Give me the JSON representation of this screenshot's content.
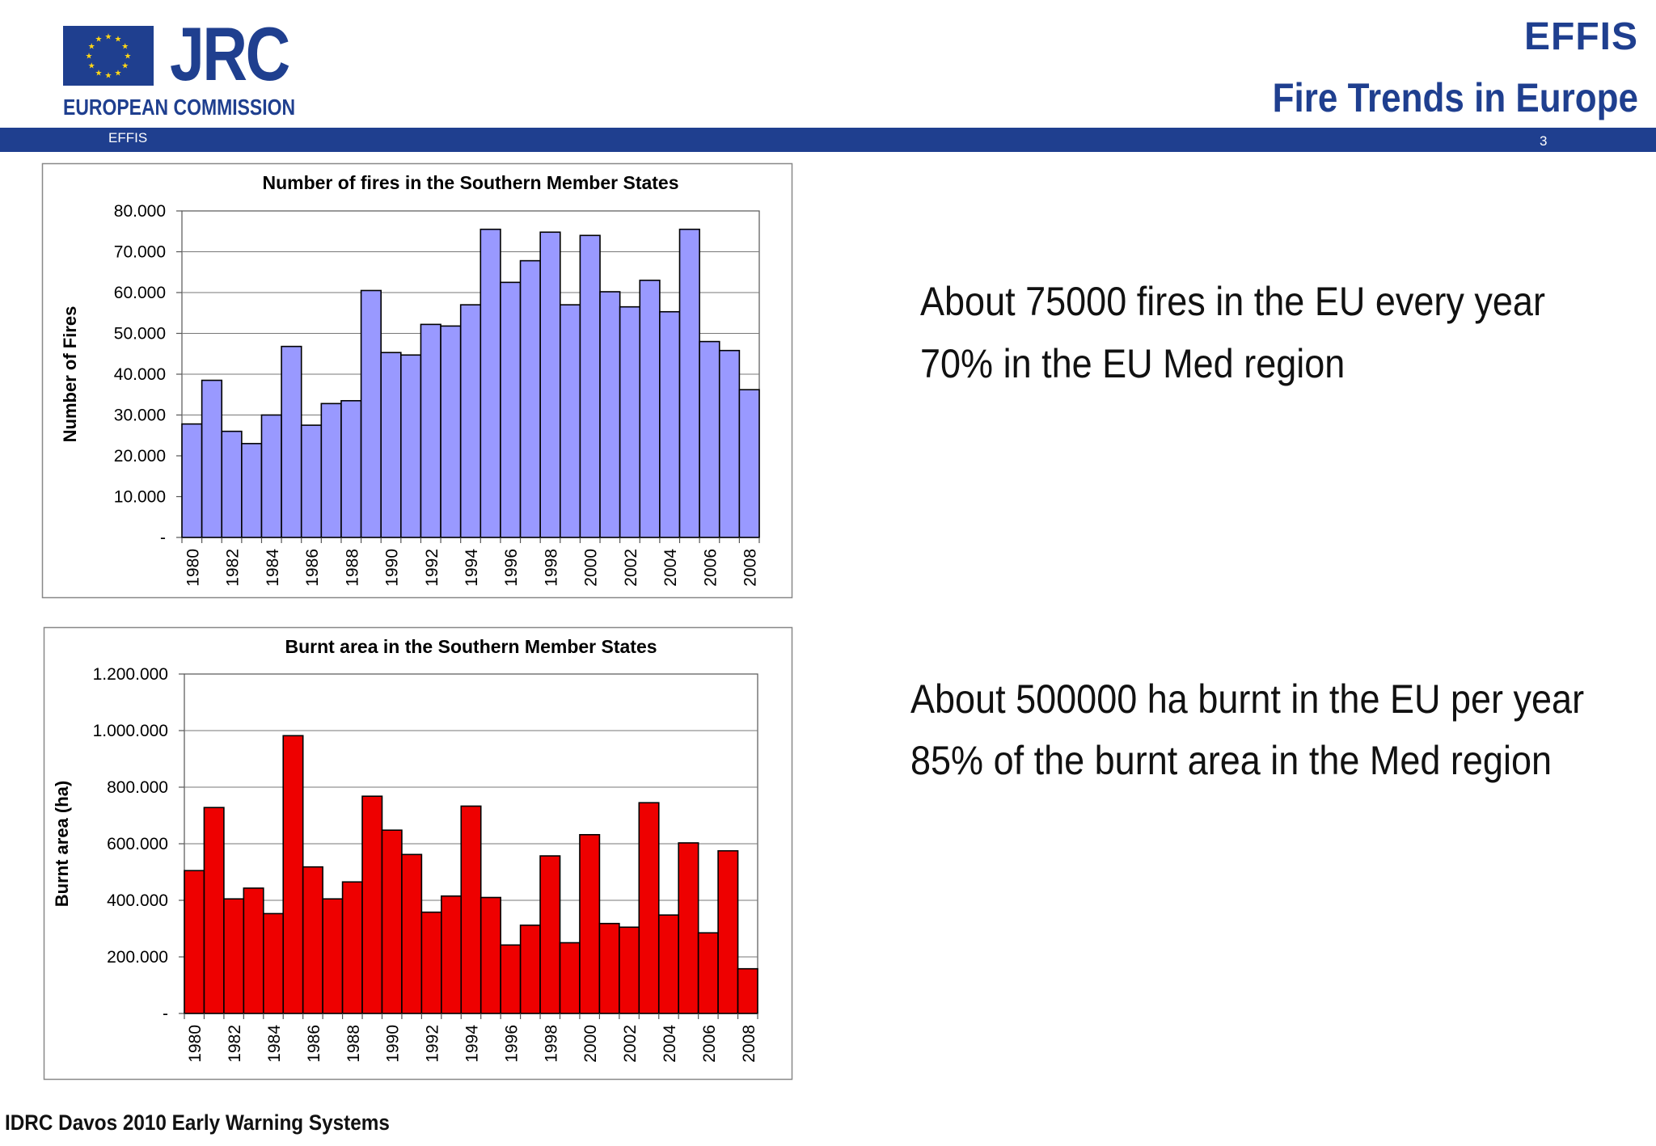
{
  "header": {
    "logo_text": "JRC",
    "org_name": "EUROPEAN COMMISSION",
    "brand": "EFFIS",
    "title": "Fire Trends in Europe",
    "bar_label": "EFFIS",
    "page_number": "3"
  },
  "colors": {
    "brand_blue": "#1f3f8f",
    "fires_bar": "#9999ff",
    "area_bar": "#ee0000"
  },
  "chart_data": [
    {
      "type": "bar",
      "title": "Number of fires in the Southern Member States",
      "xlabel": "",
      "ylabel": "Number of Fires",
      "categories": [
        "1980",
        "1981",
        "1982",
        "1983",
        "1984",
        "1985",
        "1986",
        "1987",
        "1988",
        "1989",
        "1990",
        "1991",
        "1992",
        "1993",
        "1994",
        "1995",
        "1996",
        "1997",
        "1998",
        "1999",
        "2000",
        "2001",
        "2002",
        "2003",
        "2004",
        "2005",
        "2006",
        "2007",
        "2008"
      ],
      "values": [
        27800,
        38500,
        26000,
        23000,
        30000,
        46800,
        27500,
        32800,
        33500,
        60500,
        45300,
        44700,
        52200,
        51800,
        57000,
        75500,
        62500,
        67800,
        74800,
        57000,
        74000,
        60200,
        56500,
        63000,
        55300,
        75500,
        48000,
        45800,
        36200
      ],
      "ylim": [
        0,
        80000
      ],
      "yticks": [
        0,
        10000,
        20000,
        30000,
        40000,
        50000,
        60000,
        70000,
        80000
      ],
      "ytick_labels": [
        "-",
        "10.000",
        "20.000",
        "30.000",
        "40.000",
        "50.000",
        "60.000",
        "70.000",
        "80.000"
      ],
      "xtick_labels": [
        "1980",
        "1982",
        "1984",
        "1986",
        "1988",
        "1990",
        "1992",
        "1994",
        "1996",
        "1998",
        "2000",
        "2002",
        "2004",
        "2006",
        "2008"
      ],
      "grid": true,
      "legend": "none"
    },
    {
      "type": "bar",
      "title": "Burnt area in the Southern Member States",
      "xlabel": "",
      "ylabel": "Burnt area (ha)",
      "categories": [
        "1980",
        "1981",
        "1982",
        "1983",
        "1984",
        "1985",
        "1986",
        "1987",
        "1988",
        "1989",
        "1990",
        "1991",
        "1992",
        "1993",
        "1994",
        "1995",
        "1996",
        "1997",
        "1998",
        "1999",
        "2000",
        "2001",
        "2002",
        "2003",
        "2004",
        "2005",
        "2006",
        "2007",
        "2008"
      ],
      "values": [
        505000,
        728000,
        405000,
        443000,
        353000,
        982000,
        518000,
        405000,
        465000,
        768000,
        648000,
        562000,
        358000,
        415000,
        733000,
        410000,
        242000,
        312000,
        557000,
        250000,
        632000,
        318000,
        305000,
        745000,
        348000,
        603000,
        285000,
        575000,
        158000
      ],
      "ylim": [
        0,
        1200000
      ],
      "yticks": [
        0,
        200000,
        400000,
        600000,
        800000,
        1000000,
        1200000
      ],
      "ytick_labels": [
        "-",
        "200.000",
        "400.000",
        "600.000",
        "800.000",
        "1.000.000",
        "1.200.000"
      ],
      "xtick_labels": [
        "1980",
        "1982",
        "1984",
        "1986",
        "1988",
        "1990",
        "1992",
        "1994",
        "1996",
        "1998",
        "2000",
        "2002",
        "2004",
        "2006",
        "2008"
      ],
      "grid": true,
      "legend": "none"
    }
  ],
  "bullets_fires": [
    "About 75000 fires in the EU every year",
    "70% in the EU Med region"
  ],
  "bullets_area": [
    "About 500000 ha burnt in the EU per year",
    "85% of the burnt area in the Med region"
  ],
  "footer": "IDRC Davos 2010 Early Warning Systems"
}
